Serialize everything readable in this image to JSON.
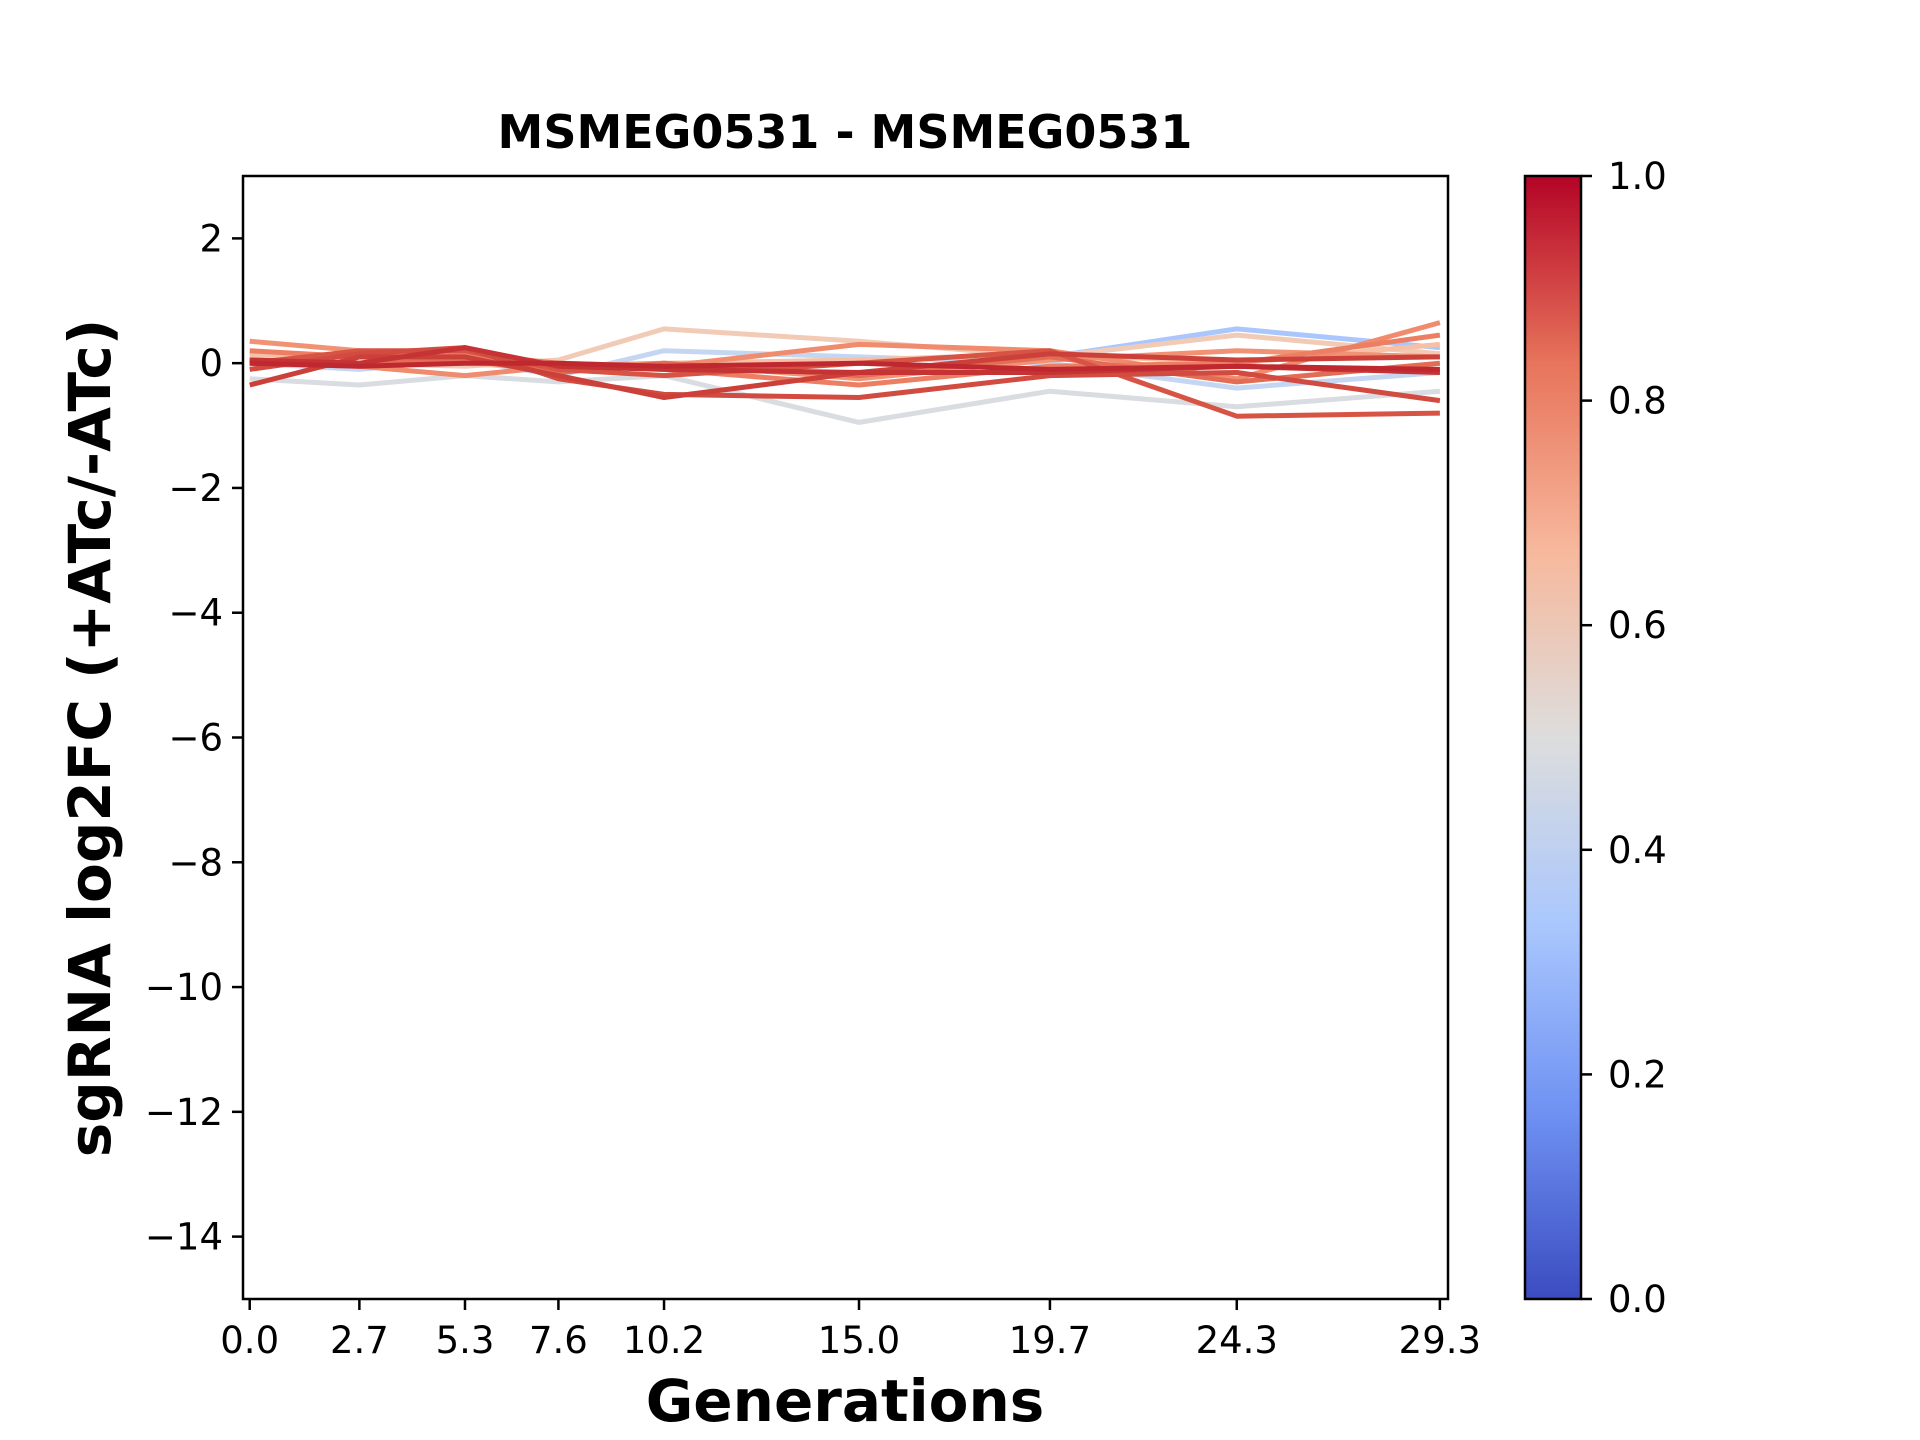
{
  "chart_data": {
    "type": "line",
    "title": "MSMEG0531 - MSMEG0531",
    "xlabel": "Generations",
    "ylabel": "sgRNA log2FC (+ATc/-ATc)",
    "x": [
      0.0,
      2.7,
      5.3,
      7.6,
      10.2,
      15.0,
      19.7,
      24.3,
      29.3
    ],
    "xtick_labels": [
      "0.0",
      "2.7",
      "5.3",
      "7.6",
      "10.2",
      "15.0",
      "19.7",
      "24.3",
      "29.3"
    ],
    "ylim": [
      -15,
      3
    ],
    "yticks": [
      2,
      0,
      -2,
      -4,
      -6,
      -8,
      -10,
      -12,
      -14
    ],
    "ytick_labels": [
      "2",
      "0",
      "−2",
      "−4",
      "−6",
      "−8",
      "−10",
      "−12",
      "−14"
    ],
    "grid": false,
    "colormap": "coolwarm",
    "colorbar": {
      "range": [
        0.0,
        1.0
      ],
      "ticks": [
        0.0,
        0.2,
        0.4,
        0.6,
        0.8,
        1.0
      ],
      "tick_labels": [
        "0.0",
        "0.2",
        "0.4",
        "0.6",
        "0.8",
        "1.0"
      ],
      "stops": [
        "#3b4cc0",
        "#6f92f3",
        "#aac7fd",
        "#dddddd",
        "#f7b89c",
        "#e7745b",
        "#b40426"
      ]
    },
    "series": [
      {
        "color_value": 0.3,
        "color": "#aac7fd",
        "values": [
          0.05,
          0.0,
          0.1,
          0.0,
          -0.05,
          0.05,
          0.1,
          0.55,
          0.25
        ]
      },
      {
        "color_value": 0.48,
        "color": "#d9dce1",
        "values": [
          -0.25,
          -0.35,
          -0.2,
          -0.3,
          -0.2,
          -0.95,
          -0.45,
          -0.7,
          -0.45
        ]
      },
      {
        "color_value": 0.4,
        "color": "#c5d6f2",
        "values": [
          0.0,
          -0.1,
          0.05,
          -0.2,
          0.2,
          0.1,
          0.0,
          -0.4,
          -0.15
        ]
      },
      {
        "color_value": 0.58,
        "color": "#f2cbb7",
        "values": [
          0.1,
          0.0,
          -0.05,
          0.05,
          0.55,
          0.35,
          0.1,
          0.45,
          0.15
        ]
      },
      {
        "color_value": 0.62,
        "color": "#f5c0a6",
        "values": [
          0.15,
          0.1,
          0.0,
          -0.1,
          0.0,
          0.05,
          0.15,
          0.0,
          0.3
        ]
      },
      {
        "color_value": 0.7,
        "color": "#f29274",
        "values": [
          0.35,
          0.2,
          0.1,
          -0.05,
          0.0,
          -0.25,
          0.05,
          0.2,
          0.1
        ]
      },
      {
        "color_value": 0.72,
        "color": "#f08b6e",
        "values": [
          0.0,
          -0.05,
          -0.2,
          -0.05,
          -0.05,
          0.3,
          0.2,
          -0.25,
          0.65
        ]
      },
      {
        "color_value": 0.76,
        "color": "#ec7f63",
        "values": [
          0.2,
          0.1,
          0.15,
          0.0,
          -0.1,
          -0.35,
          -0.05,
          0.0,
          0.45
        ]
      },
      {
        "color_value": 0.8,
        "color": "#e36c55",
        "values": [
          0.05,
          0.0,
          0.05,
          -0.15,
          0.0,
          -0.2,
          0.1,
          -0.3,
          0.0
        ]
      },
      {
        "color_value": 0.86,
        "color": "#d75445",
        "values": [
          0.0,
          0.2,
          0.2,
          -0.1,
          -0.2,
          0.0,
          0.2,
          -0.85,
          -0.8
        ]
      },
      {
        "color_value": 0.88,
        "color": "#d24b40",
        "values": [
          -0.1,
          0.15,
          0.25,
          -0.25,
          -0.5,
          -0.55,
          -0.2,
          -0.15,
          -0.6
        ]
      },
      {
        "color_value": 0.91,
        "color": "#cc403a",
        "values": [
          -0.35,
          0.1,
          0.1,
          -0.2,
          -0.55,
          -0.15,
          0.15,
          0.05,
          0.1
        ]
      },
      {
        "color_value": 0.94,
        "color": "#c53334",
        "values": [
          0.05,
          0.0,
          0.25,
          -0.05,
          -0.1,
          -0.15,
          -0.15,
          -0.05,
          -0.15
        ]
      },
      {
        "color_value": 0.96,
        "color": "#c0282f",
        "values": [
          0.0,
          -0.05,
          0.0,
          0.0,
          -0.05,
          0.0,
          -0.1,
          -0.05,
          -0.1
        ]
      }
    ]
  }
}
